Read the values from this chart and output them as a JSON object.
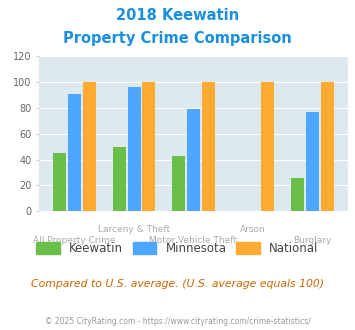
{
  "title_line1": "2018 Keewatin",
  "title_line2": "Property Crime Comparison",
  "cat_labels_row1": [
    "",
    "Larceny & Theft",
    "",
    "Arson",
    ""
  ],
  "cat_labels_row2": [
    "All Property Crime",
    "",
    "Motor Vehicle Theft",
    "",
    "Burglary"
  ],
  "keewatin": [
    45,
    50,
    43,
    0,
    26
  ],
  "minnesota": [
    91,
    96,
    79,
    0,
    77
  ],
  "national": [
    100,
    100,
    100,
    100,
    100
  ],
  "color_keewatin": "#6abf4b",
  "color_minnesota": "#4da6ff",
  "color_national": "#ffaa33",
  "ylim": [
    0,
    120
  ],
  "yticks": [
    0,
    20,
    40,
    60,
    80,
    100,
    120
  ],
  "title_color": "#1a8fe0",
  "bg_color": "#dce9f0",
  "footer_text": "Compared to U.S. average. (U.S. average equals 100)",
  "footer_color": "#cc6600",
  "credit_text": "© 2025 CityRating.com - https://www.cityrating.com/crime-statistics/",
  "credit_color": "#999999"
}
